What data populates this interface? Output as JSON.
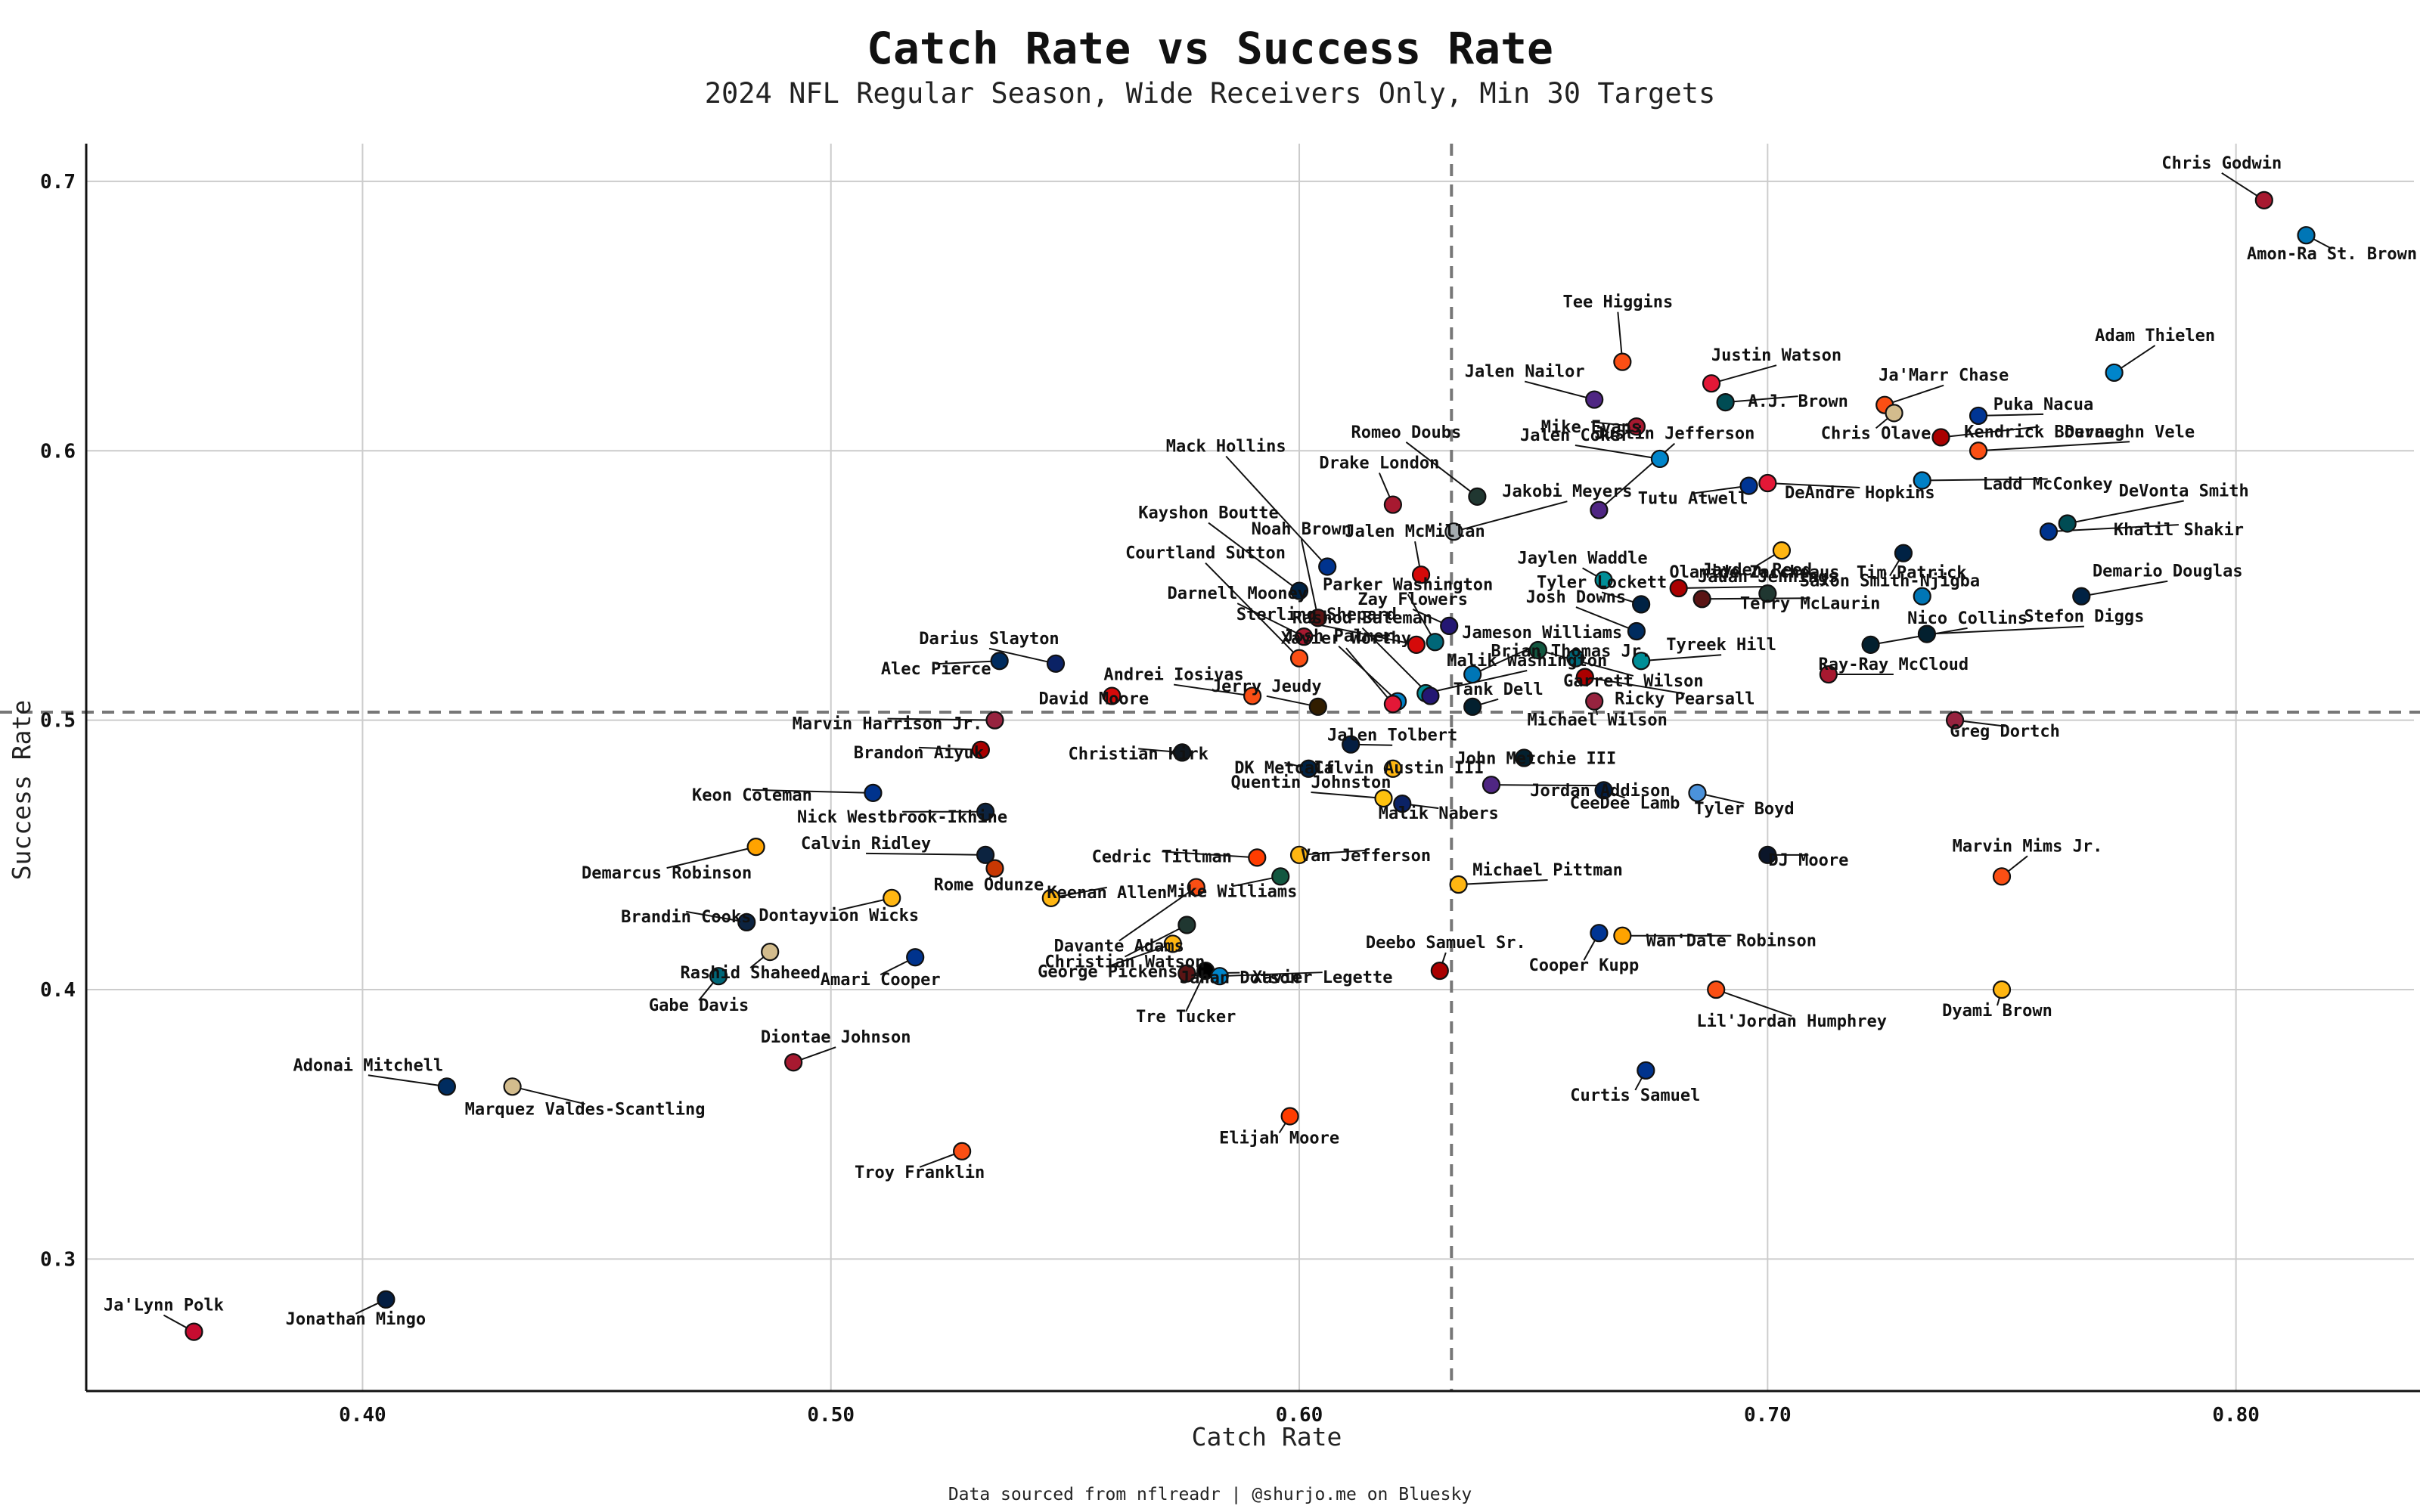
{
  "chart_data": {
    "type": "scatter",
    "title": "Catch Rate vs Success Rate",
    "subtitle": "2024 NFL Regular Season, Wide Receivers Only, Min 30 Targets",
    "xlabel": "Catch Rate",
    "ylabel": "Success Rate",
    "caption": "Data sourced from nflreadr | @shurjo.me on Bluesky",
    "xlim": [
      0.341,
      0.838
    ],
    "ylim": [
      0.251,
      0.714
    ],
    "xticks": [
      "0.40",
      "0.50",
      "0.60",
      "0.70",
      "0.80"
    ],
    "yticks": [
      "0.3",
      "0.4",
      "0.5",
      "0.6",
      "0.7"
    ],
    "grid": true,
    "reference_lines": {
      "x": 0.6325,
      "y": 0.503
    },
    "points": [
      {
        "name": "Chris Godwin",
        "x": 0.806,
        "y": 0.693,
        "color": "#A71930"
      },
      {
        "name": "Amon-Ra St. Brown",
        "x": 0.815,
        "y": 0.68,
        "color": "#0076B6"
      },
      {
        "name": "Adam Thielen",
        "x": 0.774,
        "y": 0.629,
        "color": "#0085CA"
      },
      {
        "name": "Tee Higgins",
        "x": 0.669,
        "y": 0.633,
        "color": "#FB4F14"
      },
      {
        "name": "Justin Watson",
        "x": 0.688,
        "y": 0.625,
        "color": "#E31837"
      },
      {
        "name": "Ja'Marr Chase",
        "x": 0.725,
        "y": 0.617,
        "color": "#FB4F14"
      },
      {
        "name": "Jalen Nailor",
        "x": 0.663,
        "y": 0.619,
        "color": "#4F2683"
      },
      {
        "name": "A.J. Brown",
        "x": 0.691,
        "y": 0.618,
        "color": "#004C54"
      },
      {
        "name": "Mike Evans",
        "x": 0.672,
        "y": 0.609,
        "color": "#A71930"
      },
      {
        "name": "Chris Olave",
        "x": 0.727,
        "y": 0.614,
        "color": "#D3BC8D"
      },
      {
        "name": "Puka Nacua",
        "x": 0.745,
        "y": 0.613,
        "color": "#003594"
      },
      {
        "name": "Kendrick Bourne",
        "x": 0.737,
        "y": 0.605,
        "color": "#AA0000"
      },
      {
        "name": "Devaughn Vele",
        "x": 0.745,
        "y": 0.6,
        "color": "#FB4F14"
      },
      {
        "name": "Jalen Coker",
        "x": 0.677,
        "y": 0.597,
        "color": "#0085CA"
      },
      {
        "name": "Tutu Atwell",
        "x": 0.696,
        "y": 0.587,
        "color": "#003594"
      },
      {
        "name": "DeAndre Hopkins",
        "x": 0.7,
        "y": 0.588,
        "color": "#E31837"
      },
      {
        "name": "Ladd McConkey",
        "x": 0.733,
        "y": 0.589,
        "color": "#0080C6"
      },
      {
        "name": "Romeo Doubs",
        "x": 0.638,
        "y": 0.583,
        "color": "#203731"
      },
      {
        "name": "Drake London",
        "x": 0.62,
        "y": 0.58,
        "color": "#A71930"
      },
      {
        "name": "Justin Jefferson",
        "x": 0.664,
        "y": 0.578,
        "color": "#4F2683"
      },
      {
        "name": "DeVonta Smith",
        "x": 0.764,
        "y": 0.573,
        "color": "#004C54"
      },
      {
        "name": "Khalil Shakir",
        "x": 0.76,
        "y": 0.57,
        "color": "#00338D"
      },
      {
        "name": "Jakobi Meyers",
        "x": 0.633,
        "y": 0.57,
        "color": "#A5ACAF"
      },
      {
        "name": "Saxon Smith-Njigba",
        "x": 0.729,
        "y": 0.562,
        "color": "#002244"
      },
      {
        "name": "Olamide Zaccheaus",
        "x": 0.703,
        "y": 0.563,
        "color": "#FFB612"
      },
      {
        "name": "Mack Hollins",
        "x": 0.606,
        "y": 0.557,
        "color": "#00338D"
      },
      {
        "name": "Jalen McMillan",
        "x": 0.626,
        "y": 0.554,
        "color": "#D50A0A"
      },
      {
        "name": "Jaylen Waddle",
        "x": 0.665,
        "y": 0.552,
        "color": "#008E97"
      },
      {
        "name": "Kayshon Boutte",
        "x": 0.6,
        "y": 0.548,
        "color": "#002244"
      },
      {
        "name": "Jauan Jennings",
        "x": 0.681,
        "y": 0.549,
        "color": "#AA0000"
      },
      {
        "name": "Demario Douglas",
        "x": 0.767,
        "y": 0.546,
        "color": "#002244"
      },
      {
        "name": "Jayden Reed",
        "x": 0.7,
        "y": 0.547,
        "color": "#203731"
      },
      {
        "name": "Tim Patrick",
        "x": 0.733,
        "y": 0.546,
        "color": "#0076B6"
      },
      {
        "name": "Tyler Lockett",
        "x": 0.673,
        "y": 0.543,
        "color": "#002244"
      },
      {
        "name": "Terry McLaurin",
        "x": 0.686,
        "y": 0.545,
        "color": "#5A1414"
      },
      {
        "name": "Noah Brown",
        "x": 0.604,
        "y": 0.538,
        "color": "#5A1414"
      },
      {
        "name": "Zay Flowers",
        "x": 0.632,
        "y": 0.535,
        "color": "#241773"
      },
      {
        "name": "Stefon Diggs",
        "x": 0.734,
        "y": 0.532,
        "color": "#03202F"
      },
      {
        "name": "Josh Downs",
        "x": 0.672,
        "y": 0.533,
        "color": "#002C5F"
      },
      {
        "name": "Darnell Mooney",
        "x": 0.601,
        "y": 0.531,
        "color": "#A71930"
      },
      {
        "name": "Sterling Shepard",
        "x": 0.625,
        "y": 0.528,
        "color": "#D50A0A"
      },
      {
        "name": "Parker Washington",
        "x": 0.629,
        "y": 0.529,
        "color": "#006778"
      },
      {
        "name": "Nico Collins",
        "x": 0.722,
        "y": 0.528,
        "color": "#03202F"
      },
      {
        "name": "Garrett Wilson",
        "x": 0.651,
        "y": 0.526,
        "color": "#125740"
      },
      {
        "name": "Brian Thomas Jr.",
        "x": 0.659,
        "y": 0.523,
        "color": "#006778"
      },
      {
        "name": "Courtland Sutton",
        "x": 0.6,
        "y": 0.523,
        "color": "#FB4F14"
      },
      {
        "name": "Tyreek Hill",
        "x": 0.673,
        "y": 0.522,
        "color": "#008E97"
      },
      {
        "name": "Ricky Pearsall",
        "x": 0.661,
        "y": 0.516,
        "color": "#AA0000"
      },
      {
        "name": "Alec Pierce",
        "x": 0.536,
        "y": 0.522,
        "color": "#002C5F"
      },
      {
        "name": "Darius Slayton",
        "x": 0.548,
        "y": 0.521,
        "color": "#0B2265"
      },
      {
        "name": "Ray-Ray McCloud",
        "x": 0.713,
        "y": 0.517,
        "color": "#A71930"
      },
      {
        "name": "Jameson Williams",
        "x": 0.637,
        "y": 0.517,
        "color": "#0076B6"
      },
      {
        "name": "Malik Washington",
        "x": 0.627,
        "y": 0.51,
        "color": "#008E97"
      },
      {
        "name": "Rashod Bateman",
        "x": 0.628,
        "y": 0.509,
        "color": "#241773"
      },
      {
        "name": "Andrei Iosivas",
        "x": 0.59,
        "y": 0.509,
        "color": "#FB4F14"
      },
      {
        "name": "Josh Palmer",
        "x": 0.621,
        "y": 0.507,
        "color": "#0080C6"
      },
      {
        "name": "Michael Wilson",
        "x": 0.663,
        "y": 0.507,
        "color": "#97233F"
      },
      {
        "name": "Xavier Worthy",
        "x": 0.62,
        "y": 0.506,
        "color": "#E31837"
      },
      {
        "name": "David Moore",
        "x": 0.56,
        "y": 0.509,
        "color": "#D50A0A"
      },
      {
        "name": "Jerry Jeudy",
        "x": 0.604,
        "y": 0.505,
        "color": "#311D00"
      },
      {
        "name": "Tank Dell",
        "x": 0.637,
        "y": 0.505,
        "color": "#03202F"
      },
      {
        "name": "Marvin Harrison Jr.",
        "x": 0.535,
        "y": 0.5,
        "color": "#97233F"
      },
      {
        "name": "Greg Dortch",
        "x": 0.74,
        "y": 0.5,
        "color": "#97233F"
      },
      {
        "name": "Jalen Tolbert",
        "x": 0.611,
        "y": 0.491,
        "color": "#041E42"
      },
      {
        "name": "Christian Kirk",
        "x": 0.575,
        "y": 0.488,
        "color": "#101820"
      },
      {
        "name": "Brandon Aiyuk",
        "x": 0.532,
        "y": 0.489,
        "color": "#AA0000"
      },
      {
        "name": "John Metchie III",
        "x": 0.648,
        "y": 0.486,
        "color": "#03202F"
      },
      {
        "name": "Calvin Austin III",
        "x": 0.62,
        "y": 0.482,
        "color": "#FFB612"
      },
      {
        "name": "DK Metcalf",
        "x": 0.602,
        "y": 0.482,
        "color": "#002244"
      },
      {
        "name": "Jordan Addison",
        "x": 0.641,
        "y": 0.476,
        "color": "#4F2683"
      },
      {
        "name": "CeeDee Lamb",
        "x": 0.665,
        "y": 0.474,
        "color": "#041E42"
      },
      {
        "name": "Tyler Boyd",
        "x": 0.685,
        "y": 0.473,
        "color": "#4B92DB"
      },
      {
        "name": "Keon Coleman",
        "x": 0.509,
        "y": 0.473,
        "color": "#00338D"
      },
      {
        "name": "Quentin Johnston",
        "x": 0.618,
        "y": 0.471,
        "color": "#FFC20E"
      },
      {
        "name": "Malik Nabers",
        "x": 0.622,
        "y": 0.469,
        "color": "#0B2265"
      },
      {
        "name": "Nick Westbrook-Ikhine",
        "x": 0.533,
        "y": 0.466,
        "color": "#0C2340"
      },
      {
        "name": "Calvin Ridley",
        "x": 0.533,
        "y": 0.45,
        "color": "#0C2340"
      },
      {
        "name": "DJ Moore",
        "x": 0.7,
        "y": 0.45,
        "color": "#0B162A"
      },
      {
        "name": "Van Jefferson",
        "x": 0.6,
        "y": 0.45,
        "color": "#FFB612"
      },
      {
        "name": "Cedric Tillman",
        "x": 0.591,
        "y": 0.449,
        "color": "#FF3C00"
      },
      {
        "name": "Demarcus Robinson",
        "x": 0.484,
        "y": 0.453,
        "color": "#FFA300"
      },
      {
        "name": "Rome Odunze",
        "x": 0.535,
        "y": 0.445,
        "color": "#C83803"
      },
      {
        "name": "Marvin Mims Jr.",
        "x": 0.75,
        "y": 0.442,
        "color": "#FB4F14"
      },
      {
        "name": "Mike Williams",
        "x": 0.596,
        "y": 0.442,
        "color": "#125740"
      },
      {
        "name": "Michael Pittman",
        "x": 0.634,
        "y": 0.439,
        "color": "#FFB612"
      },
      {
        "name": "Davante Adams",
        "x": 0.578,
        "y": 0.438,
        "color": "#FB4F14"
      },
      {
        "name": "Keenan Allen",
        "x": 0.547,
        "y": 0.434,
        "color": "#FFB612"
      },
      {
        "name": "Dontayvion Wicks",
        "x": 0.513,
        "y": 0.434,
        "color": "#FFB612"
      },
      {
        "name": "Brandin Cooks",
        "x": 0.482,
        "y": 0.425,
        "color": "#0C2340"
      },
      {
        "name": "Christian Watson",
        "x": 0.576,
        "y": 0.424,
        "color": "#203731"
      },
      {
        "name": "Cooper Kupp",
        "x": 0.664,
        "y": 0.421,
        "color": "#003594"
      },
      {
        "name": "Wan'Dale Robinson",
        "x": 0.669,
        "y": 0.42,
        "color": "#FFA300"
      },
      {
        "name": "George Pickens",
        "x": 0.573,
        "y": 0.417,
        "color": "#FFB612"
      },
      {
        "name": "Rashid Shaheed",
        "x": 0.487,
        "y": 0.414,
        "color": "#D3BC8D"
      },
      {
        "name": "Amari Cooper",
        "x": 0.518,
        "y": 0.412,
        "color": "#00338D"
      },
      {
        "name": "Deebo Samuel Sr.",
        "x": 0.63,
        "y": 0.407,
        "color": "#AA0000"
      },
      {
        "name": "Tre Tucker",
        "x": 0.58,
        "y": 0.407,
        "color": "#000000"
      },
      {
        "name": "Jahan Dotson",
        "x": 0.576,
        "y": 0.406,
        "color": "#5A1414"
      },
      {
        "name": "Xavier Legette",
        "x": 0.583,
        "y": 0.405,
        "color": "#0085CA"
      },
      {
        "name": "Gabe Davis",
        "x": 0.476,
        "y": 0.405,
        "color": "#006778"
      },
      {
        "name": "Lil'Jordan Humphrey",
        "x": 0.689,
        "y": 0.4,
        "color": "#FB4F14"
      },
      {
        "name": "Dyami Brown",
        "x": 0.75,
        "y": 0.4,
        "color": "#FFB612"
      },
      {
        "name": "Diontae Johnson",
        "x": 0.492,
        "y": 0.373,
        "color": "#A71930"
      },
      {
        "name": "Curtis Samuel",
        "x": 0.674,
        "y": 0.37,
        "color": "#00338D"
      },
      {
        "name": "Adonai Mitchell",
        "x": 0.418,
        "y": 0.364,
        "color": "#002C5F"
      },
      {
        "name": "Marquez Valdes-Scantling",
        "x": 0.432,
        "y": 0.364,
        "color": "#D3BC8D"
      },
      {
        "name": "Elijah Moore",
        "x": 0.598,
        "y": 0.353,
        "color": "#FF3C00"
      },
      {
        "name": "Troy Franklin",
        "x": 0.528,
        "y": 0.34,
        "color": "#FB4F14"
      },
      {
        "name": "Jonathan Mingo",
        "x": 0.405,
        "y": 0.285,
        "color": "#041E42"
      },
      {
        "name": "Ja'Lynn Polk",
        "x": 0.364,
        "y": 0.273,
        "color": "#C60C30"
      }
    ]
  }
}
